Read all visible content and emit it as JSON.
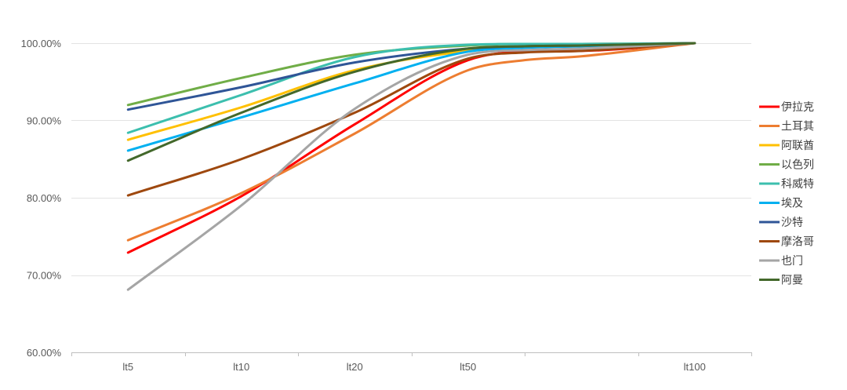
{
  "chart_data": {
    "type": "line",
    "title": "",
    "xlabel": "",
    "ylabel": "",
    "categories": [
      "lt5",
      "lt10",
      "lt20",
      "lt50",
      "lt100"
    ],
    "x_positions": [
      1,
      2,
      3,
      4,
      6
    ],
    "x_range": [
      0.5,
      6.5
    ],
    "ylim": [
      0.6,
      1.0
    ],
    "y_ticks": [
      0.6,
      0.7,
      0.8,
      0.9,
      1.0
    ],
    "y_tick_labels": [
      "60.00%",
      "70.00%",
      "80.00%",
      "90.00%",
      "100.00%"
    ],
    "grid": true,
    "legend_position": "right",
    "series": [
      {
        "name": "伊拉克",
        "color": "#ff0000",
        "x": [
          1,
          2,
          3,
          4,
          4.5,
          5,
          6
        ],
        "values": [
          0.729,
          0.802,
          0.895,
          0.978,
          0.989,
          0.99,
          1.0
        ]
      },
      {
        "name": "土耳其",
        "color": "#ed7d31",
        "x": [
          1,
          2,
          3,
          4,
          4.5,
          5,
          6
        ],
        "values": [
          0.745,
          0.806,
          0.883,
          0.965,
          0.978,
          0.983,
          1.0
        ]
      },
      {
        "name": "阿联酋",
        "color": "#ffc000",
        "x": [
          1,
          2,
          3,
          4,
          4.5,
          5,
          6
        ],
        "values": [
          0.875,
          0.917,
          0.965,
          0.99,
          0.995,
          0.997,
          1.0
        ]
      },
      {
        "name": "以色列",
        "color": "#70ad47",
        "x": [
          1,
          2,
          3,
          4,
          4.5,
          5,
          6
        ],
        "values": [
          0.92,
          0.955,
          0.985,
          0.997,
          0.999,
          0.999,
          1.0
        ]
      },
      {
        "name": "科威特",
        "color": "#3cbfae",
        "x": [
          1,
          2,
          3,
          4,
          4.5,
          5,
          6
        ],
        "values": [
          0.884,
          0.933,
          0.982,
          0.998,
          0.999,
          0.999,
          1.0
        ]
      },
      {
        "name": "埃及",
        "color": "#00b0f0",
        "x": [
          1,
          2,
          3,
          4,
          4.5,
          5,
          6
        ],
        "values": [
          0.861,
          0.904,
          0.948,
          0.989,
          0.994,
          0.996,
          1.0
        ]
      },
      {
        "name": "沙特",
        "color": "#2f5597",
        "x": [
          1,
          2,
          3,
          4,
          4.5,
          5,
          6
        ],
        "values": [
          0.914,
          0.943,
          0.975,
          0.993,
          0.996,
          0.997,
          1.0
        ]
      },
      {
        "name": "摩洛哥",
        "color": "#9e480e",
        "x": [
          1,
          2,
          3,
          4,
          4.5,
          5,
          6
        ],
        "values": [
          0.803,
          0.85,
          0.91,
          0.98,
          0.988,
          0.99,
          1.0
        ]
      },
      {
        "name": "也门",
        "color": "#a5a5a5",
        "x": [
          1,
          2,
          3,
          4,
          4.5,
          5,
          6
        ],
        "values": [
          0.681,
          0.79,
          0.915,
          0.985,
          0.991,
          0.993,
          1.0
        ]
      },
      {
        "name": "阿曼",
        "color": "#43682b",
        "x": [
          1,
          2,
          3,
          4,
          4.5,
          5,
          6
        ],
        "values": [
          0.848,
          0.91,
          0.963,
          0.993,
          0.996,
          0.997,
          1.0
        ]
      }
    ]
  }
}
